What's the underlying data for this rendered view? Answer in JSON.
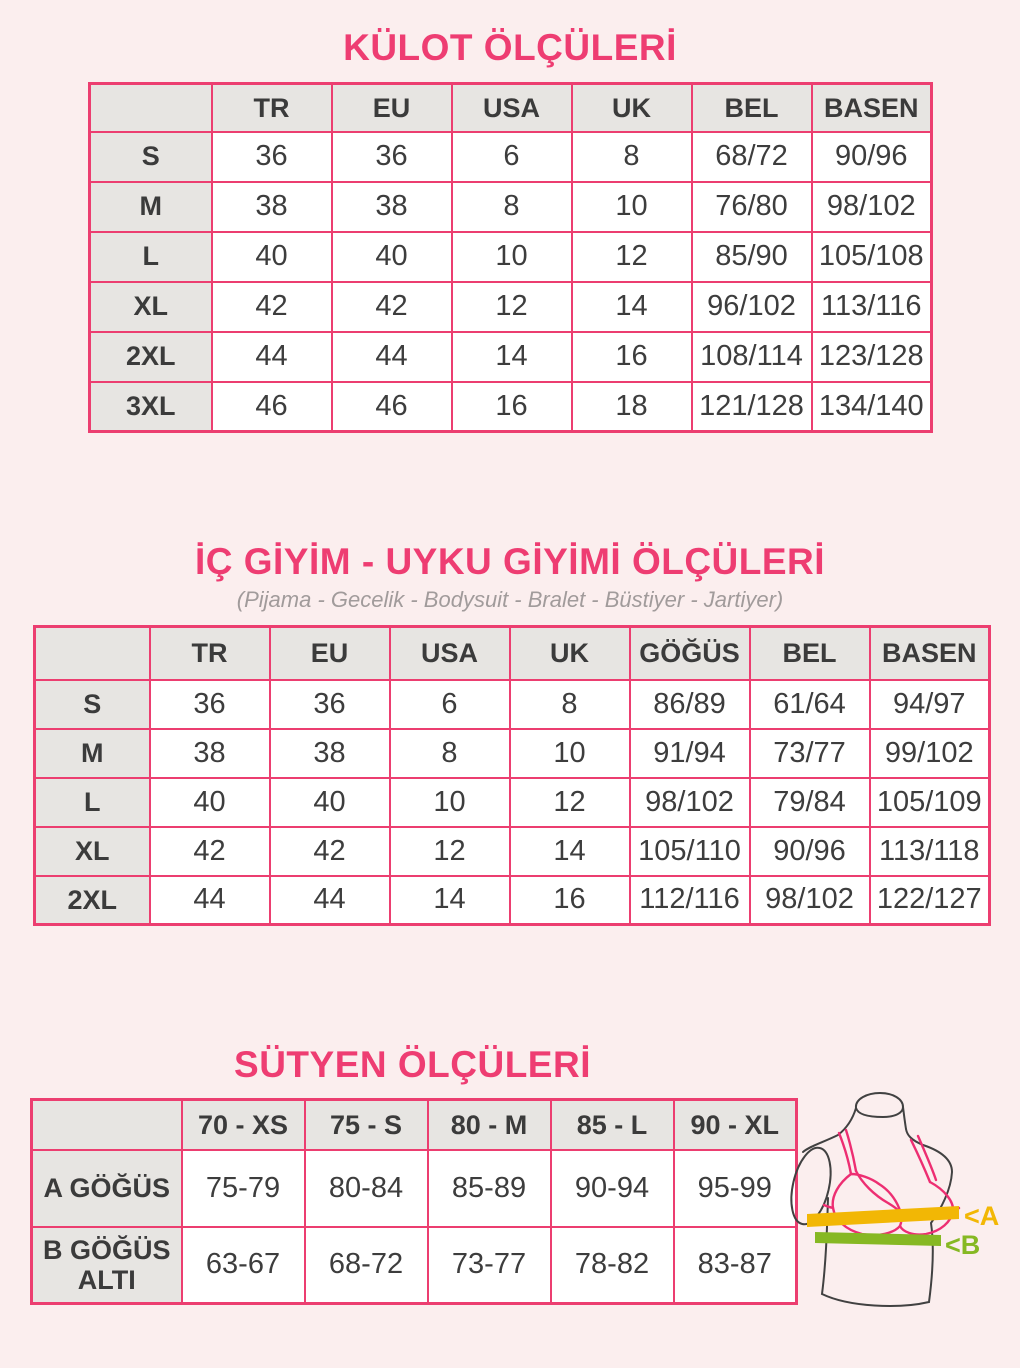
{
  "colors": {
    "background": "#fbeeee",
    "accent_pink": "#ee3d72",
    "table_border_pink": "#ec3e70",
    "header_cell_gray": "#e7e5e2",
    "text_dark": "#3a3a3a",
    "subtitle_gray": "#a19b9b",
    "bust_band_yellow": "#f2b705",
    "underbust_band_green": "#86b823",
    "bra_pink": "#ed2e72"
  },
  "kulot": {
    "title": "KÜLOT ÖLÇÜLERİ",
    "table": {
      "columns": [
        "",
        "TR",
        "EU",
        "USA",
        "UK",
        "BEL",
        "BASEN"
      ],
      "rows": [
        [
          "S",
          "36",
          "36",
          "6",
          "8",
          "68/72",
          "90/96"
        ],
        [
          "M",
          "38",
          "38",
          "8",
          "10",
          "76/80",
          "98/102"
        ],
        [
          "L",
          "40",
          "40",
          "10",
          "12",
          "85/90",
          "105/108"
        ],
        [
          "XL",
          "42",
          "42",
          "12",
          "14",
          "96/102",
          "113/116"
        ],
        [
          "2XL",
          "44",
          "44",
          "14",
          "16",
          "108/114",
          "123/128"
        ],
        [
          "3XL",
          "46",
          "46",
          "16",
          "18",
          "121/128",
          "134/140"
        ]
      ]
    }
  },
  "ic_giyim": {
    "title": "İÇ GİYİM - UYKU GİYİMİ ÖLÇÜLERİ",
    "subtitle": "(Pijama - Gecelik - Bodysuit - Bralet - Büstiyer - Jartiyer)",
    "table": {
      "columns": [
        "",
        "TR",
        "EU",
        "USA",
        "UK",
        "GÖĞÜS",
        "BEL",
        "BASEN"
      ],
      "rows": [
        [
          "S",
          "36",
          "36",
          "6",
          "8",
          "86/89",
          "61/64",
          "94/97"
        ],
        [
          "M",
          "38",
          "38",
          "8",
          "10",
          "91/94",
          "73/77",
          "99/102"
        ],
        [
          "L",
          "40",
          "40",
          "10",
          "12",
          "98/102",
          "79/84",
          "105/109"
        ],
        [
          "XL",
          "42",
          "42",
          "12",
          "14",
          "105/110",
          "90/96",
          "113/118"
        ],
        [
          "2XL",
          "44",
          "44",
          "14",
          "16",
          "112/116",
          "98/102",
          "122/127"
        ]
      ]
    }
  },
  "sutyen": {
    "title": "SÜTYEN ÖLÇÜLERİ",
    "table": {
      "columns": [
        "",
        "70 - XS",
        "75 - S",
        "80 - M",
        "85 - L",
        "90 - XL"
      ],
      "rows": [
        [
          "A GÖĞÜS",
          "75-79",
          "80-84",
          "85-89",
          "90-94",
          "95-99"
        ],
        [
          "B GÖĞÜS ALTI",
          "63-67",
          "68-72",
          "73-77",
          "78-82",
          "83-87"
        ]
      ]
    },
    "diagram": {
      "bust_label": "<A",
      "underbust_label": "<B"
    }
  }
}
